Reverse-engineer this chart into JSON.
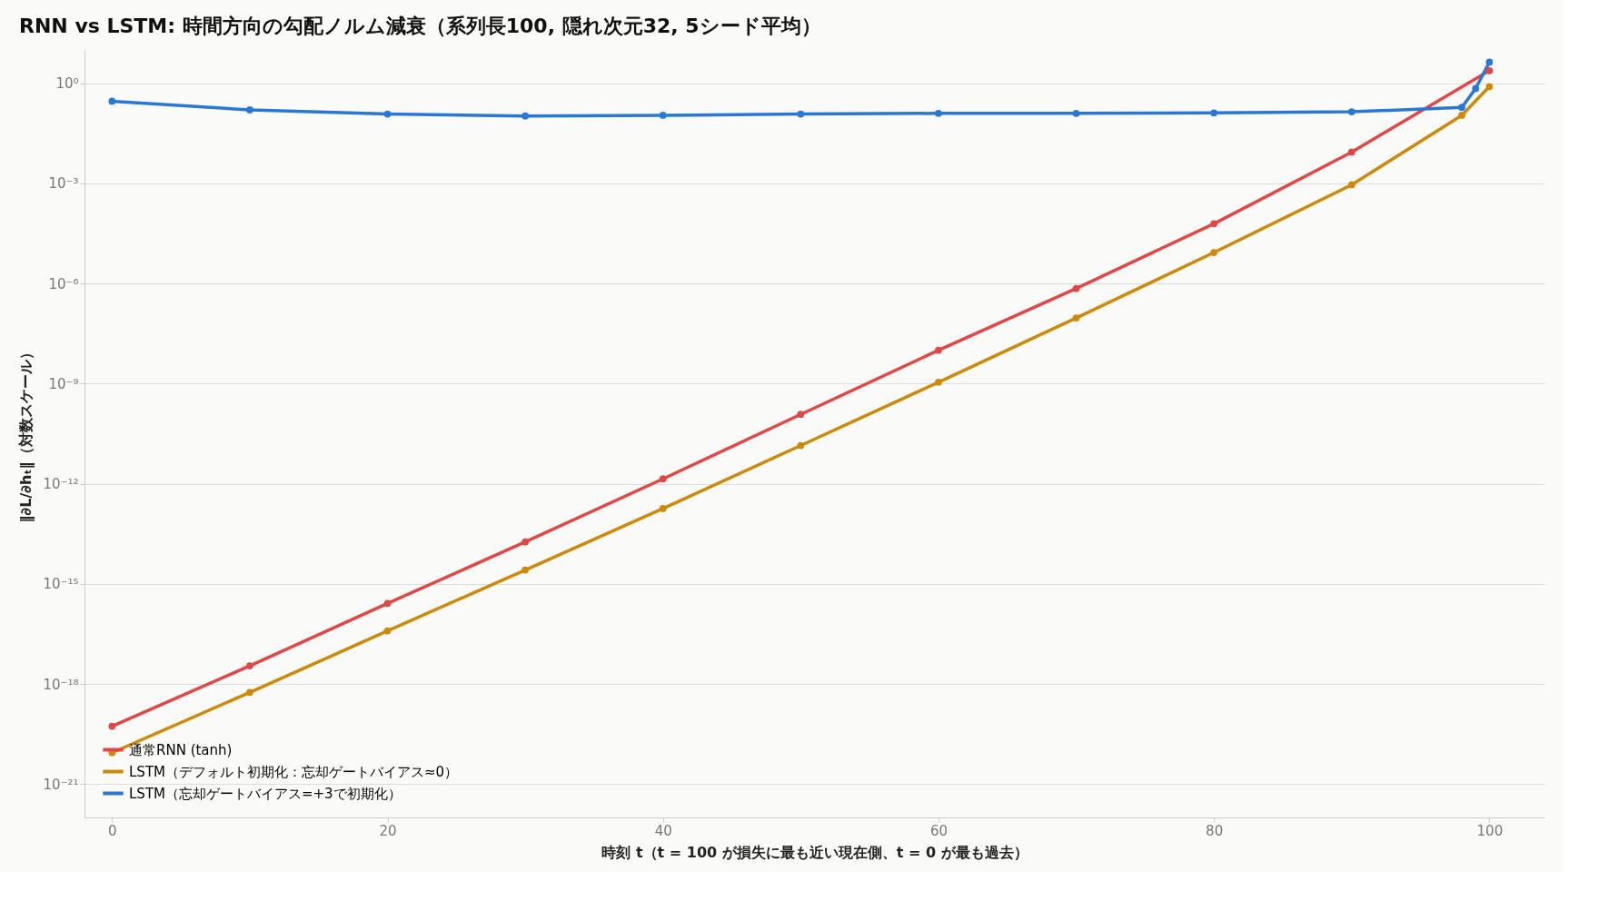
{
  "chart_data": {
    "type": "line",
    "title": "RNN vs LSTM: 時間方向の勾配ノルム減衰（系列長100, 隠れ次元32, 5シード平均）",
    "xlabel": "時刻 t（t = 100 が損失に最も近い現在側、t = 0 が最も過去）",
    "ylabel": "‖∂L/∂hₜ‖（対数スケール）",
    "series": [
      {
        "name": "通常RNN (tanh)",
        "color": "#e04848",
        "x": [
          0,
          10,
          20,
          30,
          40,
          50,
          60,
          70,
          80,
          90,
          100
        ],
        "values": [
          5.4e-20,
          3.5e-18,
          2.6e-16,
          1.8e-14,
          1.4e-12,
          1.2e-10,
          1e-08,
          7.1e-07,
          6.2e-05,
          0.0087,
          2.4
        ]
      },
      {
        "name": "LSTM（デフォルト初期化：忘却ゲートバイアス≈0）",
        "color": "#cc8a0a",
        "x": [
          0,
          10,
          20,
          30,
          40,
          50,
          60,
          70,
          80,
          90,
          98,
          100
        ],
        "values": [
          8.7e-21,
          5.6e-19,
          3.9e-17,
          2.6e-15,
          1.8e-13,
          1.4e-11,
          1.1e-09,
          9.3e-08,
          8.5e-06,
          0.00091,
          0.11,
          0.8
        ]
      },
      {
        "name": "LSTM（忘却ゲートバイアス=+3で初期化）",
        "color": "#2a78d6",
        "x": [
          0,
          10,
          20,
          30,
          40,
          50,
          60,
          70,
          80,
          90,
          98,
          99,
          100
        ],
        "values": [
          0.29,
          0.16,
          0.12,
          0.105,
          0.11,
          0.12,
          0.126,
          0.126,
          0.13,
          0.14,
          0.19,
          0.7,
          4.3
        ]
      }
    ],
    "log": "y",
    "xlim": [
      -2,
      104
    ],
    "xticks": [
      0,
      20,
      40,
      60,
      80,
      100
    ],
    "ylim": [
      1e-22,
      10
    ],
    "yticks": [
      {
        "value": 1,
        "label": "10⁰"
      },
      {
        "value": 0.001,
        "label": "10⁻³"
      },
      {
        "value": 1e-06,
        "label": "10⁻⁶"
      },
      {
        "value": 1e-09,
        "label": "10⁻⁹"
      },
      {
        "value": 1e-12,
        "label": "10⁻¹²"
      },
      {
        "value": 1e-15,
        "label": "10⁻¹⁵"
      },
      {
        "value": 1e-18,
        "label": "10⁻¹⁸"
      },
      {
        "value": 1e-21,
        "label": "10⁻²¹"
      }
    ],
    "grid": "y",
    "legend": "bottom left",
    "marker": "circle",
    "line_style": "solid"
  }
}
